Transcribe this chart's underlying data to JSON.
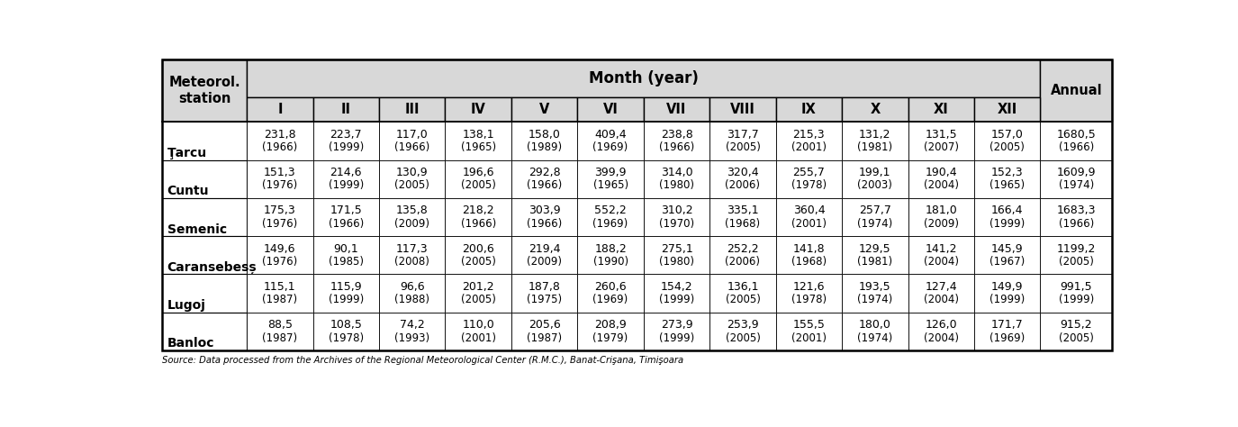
{
  "stations": [
    "Ţarcu",
    "Cuntu",
    "Semenic",
    "Caransebesș",
    "Lugoj",
    "Banloc"
  ],
  "months": [
    "I",
    "II",
    "III",
    "IV",
    "V",
    "VI",
    "VII",
    "VIII",
    "IX",
    "X",
    "XI",
    "XII"
  ],
  "data": [
    [
      [
        "231,8",
        "(1966)"
      ],
      [
        "223,7",
        "(1999)"
      ],
      [
        "117,0",
        "(1966)"
      ],
      [
        "138,1",
        "(1965)"
      ],
      [
        "158,0",
        "(1989)"
      ],
      [
        "409,4",
        "(1969)"
      ],
      [
        "238,8",
        "(1966)"
      ],
      [
        "317,7",
        "(2005)"
      ],
      [
        "215,3",
        "(2001)"
      ],
      [
        "131,2",
        "(1981)"
      ],
      [
        "131,5",
        "(2007)"
      ],
      [
        "157,0",
        "(2005)"
      ],
      [
        "1680,5",
        "(1966)"
      ]
    ],
    [
      [
        "151,3",
        "(1976)"
      ],
      [
        "214,6",
        "(1999)"
      ],
      [
        "130,9",
        "(2005)"
      ],
      [
        "196,6",
        "(2005)"
      ],
      [
        "292,8",
        "(1966)"
      ],
      [
        "399,9",
        "(1965)"
      ],
      [
        "314,0",
        "(1980)"
      ],
      [
        "320,4",
        "(2006)"
      ],
      [
        "255,7",
        "(1978)"
      ],
      [
        "199,1",
        "(2003)"
      ],
      [
        "190,4",
        "(2004)"
      ],
      [
        "152,3",
        "(1965)"
      ],
      [
        "1609,9",
        "(1974)"
      ]
    ],
    [
      [
        "175,3",
        "(1976)"
      ],
      [
        "171,5",
        "(1966)"
      ],
      [
        "135,8",
        "(2009)"
      ],
      [
        "218,2",
        "(1966)"
      ],
      [
        "303,9",
        "(1966)"
      ],
      [
        "552,2",
        "(1969)"
      ],
      [
        "310,2",
        "(1970)"
      ],
      [
        "335,1",
        "(1968)"
      ],
      [
        "360,4",
        "(2001)"
      ],
      [
        "257,7",
        "(1974)"
      ],
      [
        "181,0",
        "(2009)"
      ],
      [
        "166,4",
        "(1999)"
      ],
      [
        "1683,3",
        "(1966)"
      ]
    ],
    [
      [
        "149,6",
        "(1976)"
      ],
      [
        "90,1",
        "(1985)"
      ],
      [
        "117,3",
        "(2008)"
      ],
      [
        "200,6",
        "(2005)"
      ],
      [
        "219,4",
        "(2009)"
      ],
      [
        "188,2",
        "(1990)"
      ],
      [
        "275,1",
        "(1980)"
      ],
      [
        "252,2",
        "(2006)"
      ],
      [
        "141,8",
        "(1968)"
      ],
      [
        "129,5",
        "(1981)"
      ],
      [
        "141,2",
        "(2004)"
      ],
      [
        "145,9",
        "(1967)"
      ],
      [
        "1199,2",
        "(2005)"
      ]
    ],
    [
      [
        "115,1",
        "(1987)"
      ],
      [
        "115,9",
        "(1999)"
      ],
      [
        "96,6",
        "(1988)"
      ],
      [
        "201,2",
        "(2005)"
      ],
      [
        "187,8",
        "(1975)"
      ],
      [
        "260,6",
        "(1969)"
      ],
      [
        "154,2",
        "(1999)"
      ],
      [
        "136,1",
        "(2005)"
      ],
      [
        "121,6",
        "(1978)"
      ],
      [
        "193,5",
        "(1974)"
      ],
      [
        "127,4",
        "(2004)"
      ],
      [
        "149,9",
        "(1999)"
      ],
      [
        "991,5",
        "(1999)"
      ]
    ],
    [
      [
        "88,5",
        "(1987)"
      ],
      [
        "108,5",
        "(1978)"
      ],
      [
        "74,2",
        "(1993)"
      ],
      [
        "110,0",
        "(2001)"
      ],
      [
        "205,6",
        "(1987)"
      ],
      [
        "208,9",
        "(1979)"
      ],
      [
        "273,9",
        "(1999)"
      ],
      [
        "253,9",
        "(2005)"
      ],
      [
        "155,5",
        "(2001)"
      ],
      [
        "180,0",
        "(1974)"
      ],
      [
        "126,0",
        "(2004)"
      ],
      [
        "171,7",
        "(1969)"
      ],
      [
        "915,2",
        "(2005)"
      ]
    ]
  ],
  "bg_color": "#ffffff",
  "header_bg": "#d8d8d8",
  "border_color": "#000000",
  "text_color": "#000000",
  "data_fontsize": 9.0,
  "header_fontsize": 10.5,
  "source_text": "Source: Data processed from the Archives of the Regional Meteorological Center (R.M.C.), Banat-Crişana, Timişoara"
}
